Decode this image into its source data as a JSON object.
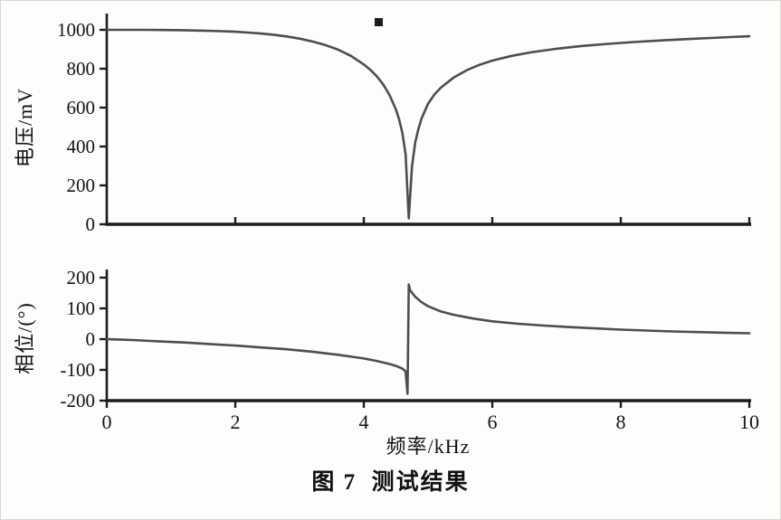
{
  "figure": {
    "caption": "图 7  测试结果"
  },
  "style": {
    "line_color": "#4d4d4d",
    "axis_color": "#1c1c1c",
    "text_color": "#141414"
  },
  "chart_data": [
    {
      "type": "line",
      "title": "",
      "xlabel": "",
      "ylabel": "电压/mV",
      "xlim": [
        0,
        10
      ],
      "ylim": [
        0,
        1000
      ],
      "xticks": [
        0,
        2,
        4,
        6,
        8,
        10
      ],
      "yticks": [
        0,
        200,
        400,
        600,
        800,
        1000
      ],
      "show_x_tick_labels": false,
      "grid": false,
      "legend": "none",
      "series": [
        {
          "name": "voltage",
          "x": [
            0,
            0.3,
            0.6,
            0.9,
            1.2,
            1.5,
            1.8,
            2.0,
            2.2,
            2.4,
            2.6,
            2.8,
            3.0,
            3.2,
            3.4,
            3.6,
            3.8,
            4.0,
            4.1,
            4.2,
            4.3,
            4.4,
            4.5,
            4.55,
            4.6,
            4.65,
            4.7,
            4.75,
            4.8,
            4.85,
            4.9,
            5.0,
            5.1,
            5.2,
            5.4,
            5.6,
            5.8,
            6.0,
            6.3,
            6.6,
            7.0,
            7.4,
            7.8,
            8.2,
            8.6,
            9.0,
            9.4,
            9.7,
            10.0
          ],
          "y": [
            1000,
            1000,
            1000,
            999,
            998,
            996,
            993,
            990,
            986,
            981,
            975,
            966,
            955,
            940,
            922,
            898,
            866,
            822,
            795,
            762,
            720,
            665,
            590,
            540,
            470,
            360,
            30,
            300,
            420,
            490,
            545,
            620,
            668,
            703,
            755,
            792,
            820,
            842,
            866,
            884,
            903,
            917,
            928,
            937,
            945,
            952,
            958,
            963,
            967
          ]
        }
      ]
    },
    {
      "type": "line",
      "title": "",
      "xlabel": "频率/kHz",
      "ylabel": "相位/(°)",
      "xlim": [
        0,
        10
      ],
      "ylim": [
        -200,
        200
      ],
      "xticks": [
        0,
        2,
        4,
        6,
        8,
        10
      ],
      "yticks": [
        -200,
        -100,
        0,
        100,
        200
      ],
      "show_x_tick_labels": true,
      "grid": false,
      "legend": "none",
      "series": [
        {
          "name": "phase",
          "x": [
            0,
            0.4,
            0.8,
            1.2,
            1.6,
            2.0,
            2.4,
            2.8,
            3.2,
            3.6,
            4.0,
            4.2,
            4.4,
            4.5,
            4.6,
            4.65,
            4.68,
            4.7,
            4.72,
            4.76,
            4.8,
            4.9,
            5.0,
            5.2,
            5.4,
            5.7,
            6.0,
            6.4,
            6.8,
            7.2,
            7.6,
            8.0,
            8.4,
            8.8,
            9.2,
            9.6,
            10.0
          ],
          "y": [
            0,
            -3,
            -7,
            -11,
            -16,
            -21,
            -27,
            -33,
            -41,
            -51,
            -63,
            -71,
            -81,
            -87,
            -96,
            -105,
            -178,
            178,
            160,
            148,
            138,
            120,
            107,
            90,
            79,
            67,
            58,
            50,
            44,
            39,
            35,
            31,
            28,
            25,
            23,
            21,
            19
          ]
        }
      ]
    }
  ]
}
